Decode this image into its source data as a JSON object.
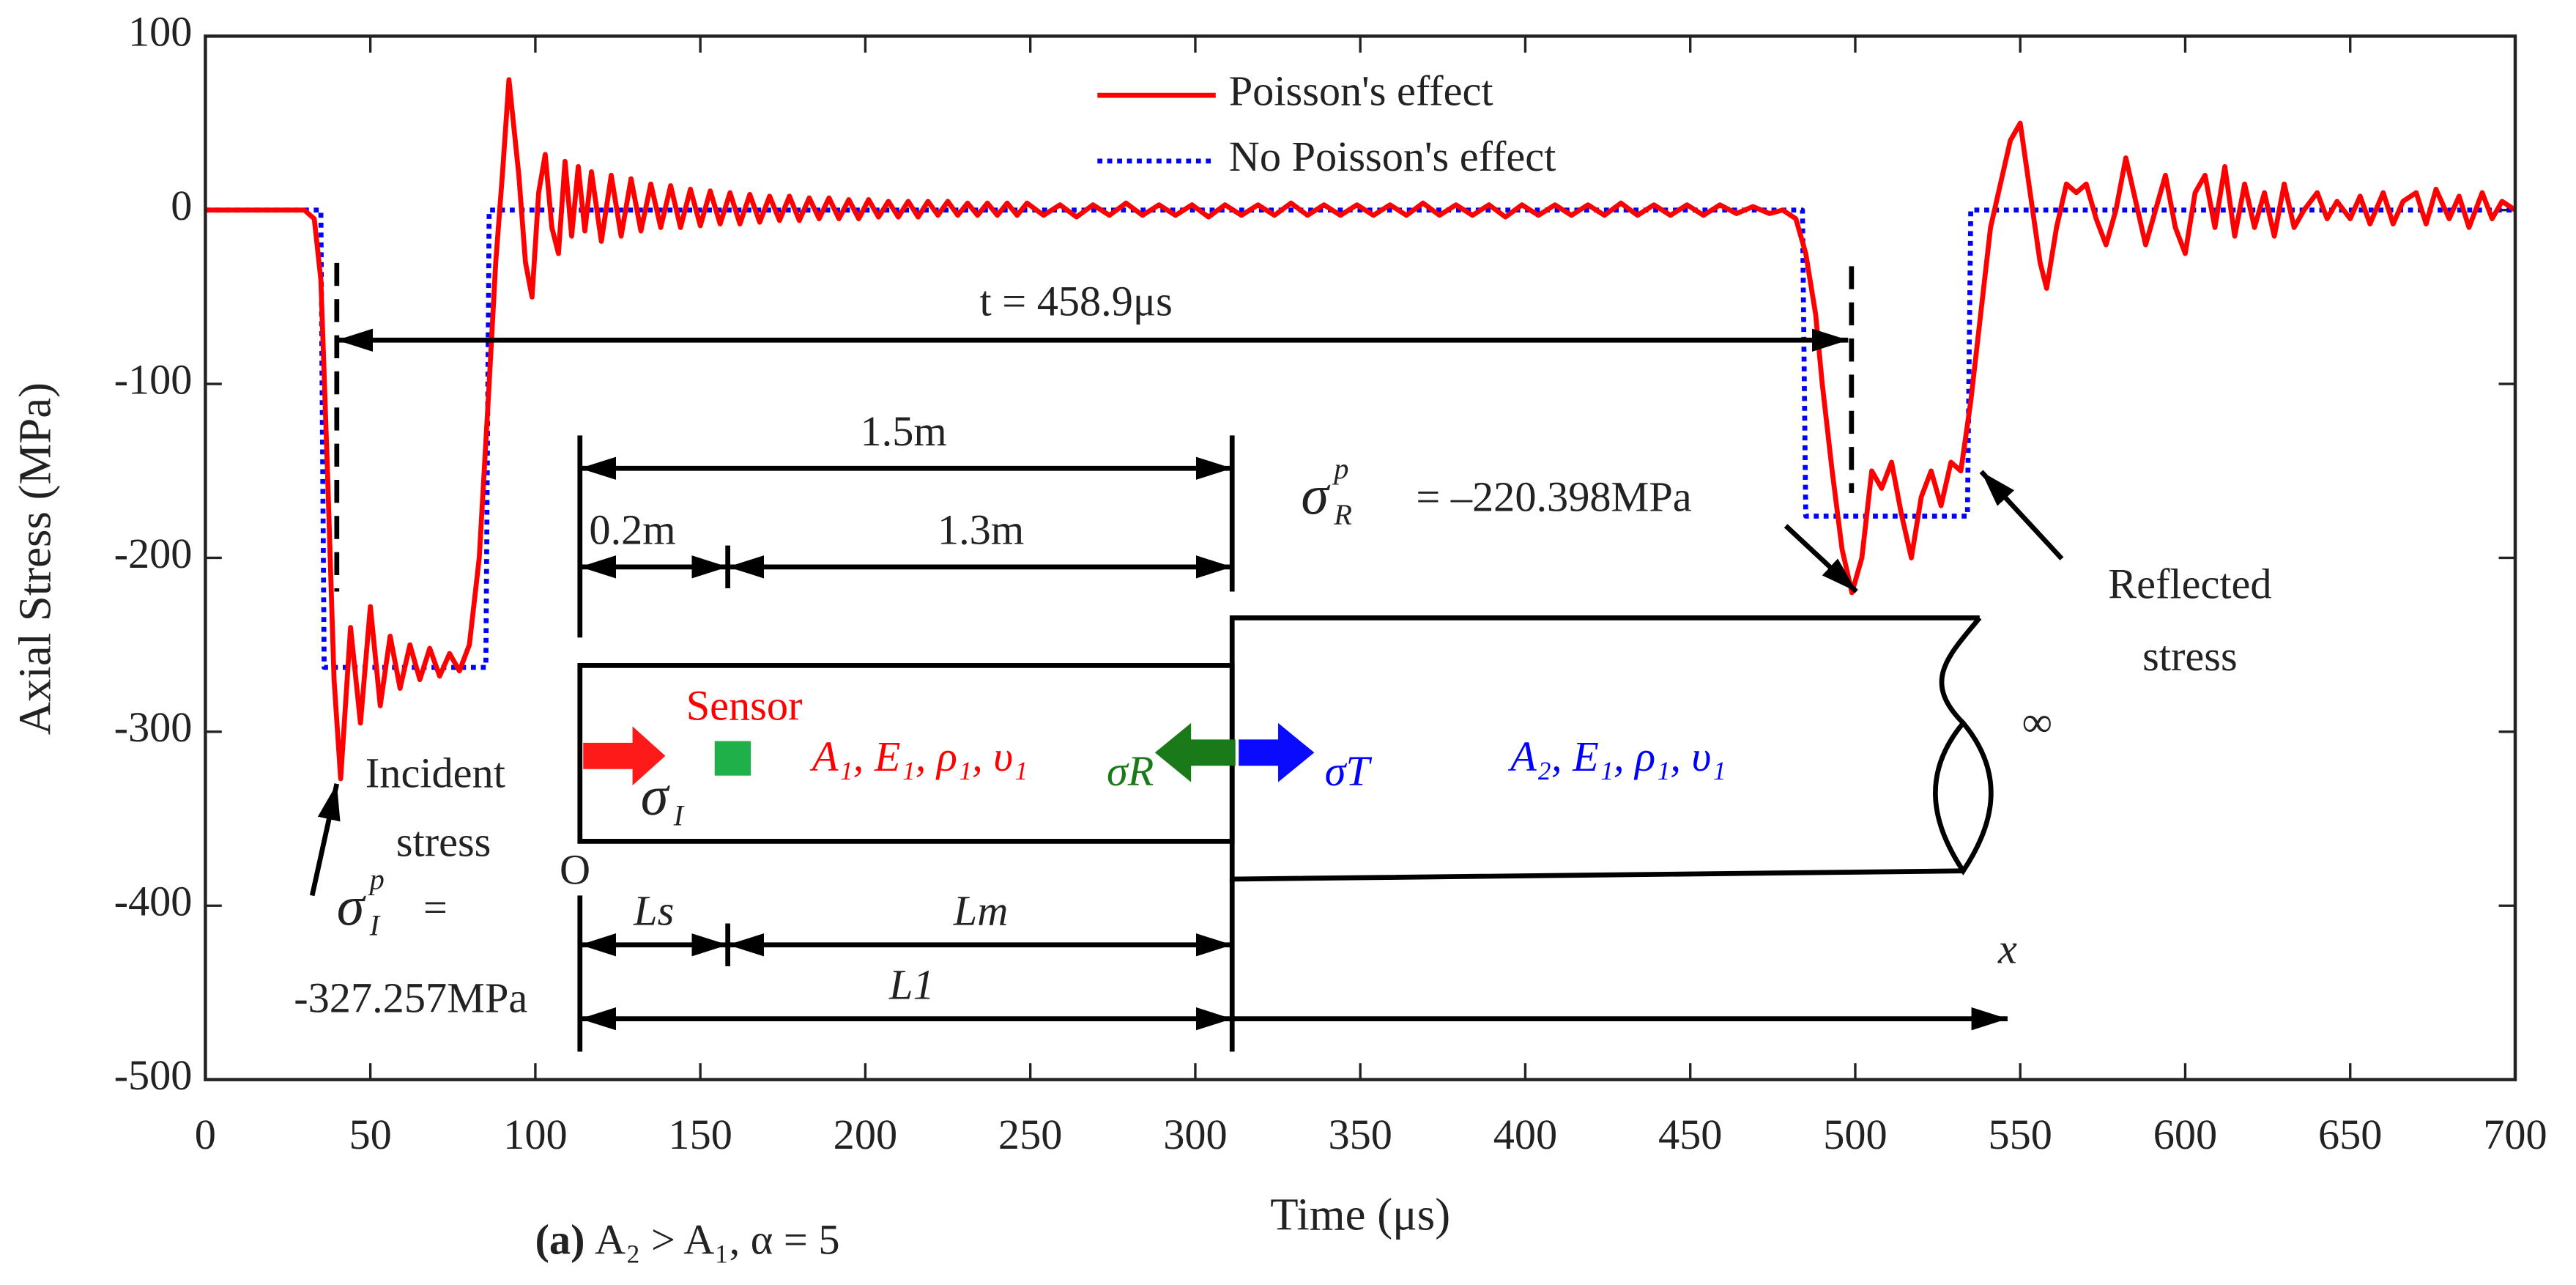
{
  "chart_data": {
    "type": "line",
    "xlabel": "Time (μs)",
    "ylabel": "Axial Stress (MPa)",
    "caption_label": "(a)",
    "caption": "A₂ > A₁, α = 5",
    "xlim": [
      0,
      700
    ],
    "ylim": [
      -500,
      100
    ],
    "xticks": [
      0,
      50,
      100,
      150,
      200,
      250,
      300,
      350,
      400,
      450,
      500,
      550,
      600,
      650,
      700
    ],
    "yticks": [
      -500,
      -400,
      -300,
      -200,
      -100,
      0,
      100
    ],
    "legend": "upper center",
    "series": [
      {
        "name": "Poisson's effect",
        "color": "#ff0000",
        "style": "solid",
        "x": [
          0,
          30,
          33,
          35,
          37,
          39,
          41,
          44,
          47,
          50,
          53,
          56,
          59,
          62,
          65,
          68,
          71,
          74,
          77,
          80,
          83,
          86,
          88,
          90,
          92,
          95,
          97,
          99,
          101,
          103,
          105,
          107,
          109,
          111,
          113,
          115,
          117,
          120,
          123,
          126,
          129,
          132,
          135,
          138,
          141,
          144,
          147,
          150,
          153,
          156,
          159,
          162,
          165,
          168,
          171,
          174,
          177,
          180,
          183,
          186,
          189,
          192,
          195,
          198,
          201,
          204,
          207,
          210,
          213,
          216,
          219,
          222,
          225,
          228,
          231,
          234,
          237,
          240,
          243,
          246,
          249,
          254,
          259,
          264,
          269,
          274,
          279,
          284,
          289,
          294,
          299,
          304,
          309,
          314,
          319,
          324,
          329,
          334,
          339,
          344,
          349,
          354,
          359,
          364,
          369,
          374,
          379,
          384,
          389,
          394,
          399,
          404,
          409,
          414,
          419,
          424,
          429,
          434,
          439,
          444,
          449,
          454,
          459,
          464,
          469,
          474,
          478,
          482,
          485,
          488,
          490,
          493,
          496,
          499,
          502,
          505,
          508,
          511,
          514,
          517,
          520,
          523,
          526,
          529,
          532,
          535,
          538,
          541,
          544,
          547,
          550,
          553,
          556,
          558,
          561,
          564,
          567,
          570,
          573,
          576,
          579,
          582,
          585,
          588,
          591,
          594,
          597,
          600,
          603,
          606,
          609,
          612,
          615,
          618,
          621,
          624,
          627,
          630,
          633,
          636,
          640,
          643,
          646,
          650,
          653,
          656,
          660,
          663,
          666,
          670,
          673,
          676,
          680,
          683,
          686,
          690,
          693,
          696,
          700
        ],
        "values": [
          0,
          0,
          -5,
          -40,
          -150,
          -270,
          -327,
          -240,
          -295,
          -228,
          -285,
          -245,
          -275,
          -250,
          -270,
          -252,
          -268,
          -255,
          -265,
          -250,
          -200,
          -100,
          -30,
          20,
          75,
          20,
          -30,
          -50,
          10,
          32,
          -10,
          -25,
          28,
          -15,
          25,
          -12,
          22,
          -18,
          20,
          -15,
          18,
          -12,
          15,
          -10,
          14,
          -10,
          12,
          -9,
          11,
          -8,
          10,
          -8,
          9,
          -7,
          8,
          -6,
          8,
          -6,
          7,
          -5,
          7,
          -5,
          6,
          -5,
          6,
          -4,
          5,
          -4,
          5,
          -4,
          5,
          -3,
          5,
          -3,
          4,
          -3,
          4,
          -3,
          4,
          -3,
          4,
          -3,
          3,
          -4,
          3,
          -3,
          4,
          -3,
          3,
          -3,
          3,
          -4,
          3,
          -3,
          3,
          -3,
          4,
          -3,
          3,
          -3,
          3,
          -3,
          3,
          -3,
          4,
          -3,
          3,
          -3,
          3,
          -4,
          3,
          -3,
          3,
          -3,
          3,
          -3,
          4,
          -3,
          3,
          -3,
          3,
          -3,
          3,
          -2,
          2,
          -2,
          0,
          -5,
          -25,
          -60,
          -100,
          -150,
          -195,
          -220,
          -200,
          -150,
          -160,
          -145,
          -175,
          -200,
          -165,
          -150,
          -170,
          -145,
          -150,
          -110,
          -60,
          -10,
          15,
          40,
          50,
          10,
          -30,
          -45,
          -10,
          15,
          10,
          15,
          -5,
          -20,
          0,
          30,
          5,
          -20,
          0,
          20,
          -10,
          -25,
          10,
          20,
          -10,
          25,
          -15,
          15,
          -10,
          10,
          -15,
          15,
          -10,
          0,
          10,
          -5,
          5,
          -5,
          8,
          -8,
          10,
          -8,
          5,
          10,
          -8,
          12,
          -5,
          8,
          -10,
          10,
          -5,
          5,
          0
        ]
      },
      {
        "name": "No Poisson's effect",
        "color": "#0000ff",
        "style": "dotted",
        "x": [
          0,
          35,
          36,
          85,
          86,
          484,
          485,
          534,
          535,
          700
        ],
        "values": [
          0,
          0,
          -263,
          -263,
          0,
          0,
          -176,
          -176,
          0,
          0
        ]
      }
    ],
    "annotations": [
      {
        "text": "t = 458.9μs"
      },
      {
        "text": "1.5m"
      },
      {
        "text": "0.2m"
      },
      {
        "text": "1.3m"
      },
      {
        "text": "σ",
        "sub": "R",
        "sup": "p"
      },
      {
        "text": "= –220.398MPa"
      },
      {
        "text": "Reflected"
      },
      {
        "text": "stress"
      },
      {
        "text": "Sensor"
      },
      {
        "text": "A₁, E₁, ρ₁, υ₁"
      },
      {
        "text": "σR"
      },
      {
        "text": "σT"
      },
      {
        "text": "A₂, E₁, ρ₁, υ₁"
      },
      {
        "text": "∞"
      },
      {
        "text": "σ",
        "sub": "I"
      },
      {
        "text": "Incident"
      },
      {
        "text": "stress"
      },
      {
        "text": "σ",
        "sub": "I",
        "sup": "p"
      },
      {
        "text": "="
      },
      {
        "text": "-327.257MPa"
      },
      {
        "text": "O"
      },
      {
        "text": "Ls"
      },
      {
        "text": "Lm"
      },
      {
        "text": "L1"
      },
      {
        "text": "x"
      }
    ]
  }
}
